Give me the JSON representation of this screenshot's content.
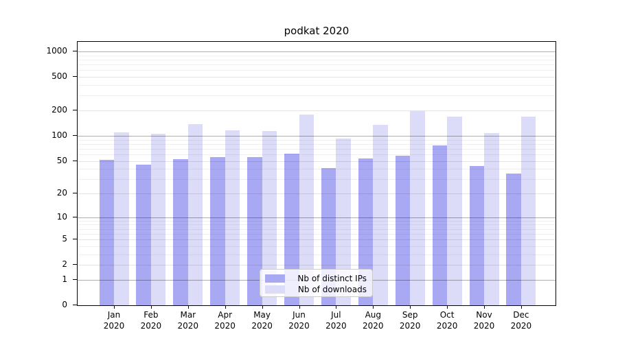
{
  "chart_data": {
    "type": "bar",
    "title": "podkat 2020",
    "categories": [
      "Jan 2020",
      "Feb 2020",
      "Mar 2020",
      "Apr 2020",
      "May 2020",
      "Jun 2020",
      "Jul 2020",
      "Aug 2020",
      "Sep 2020",
      "Oct 2020",
      "Nov 2020",
      "Dec 2020"
    ],
    "series": [
      {
        "name": "Nb of distinct IPs",
        "color": "#a9a9f3",
        "values": [
          51,
          45,
          52,
          55,
          55,
          61,
          41,
          53,
          58,
          76,
          43,
          35
        ]
      },
      {
        "name": "Nb of downloads",
        "color": "#dcdcf8",
        "values": [
          110,
          105,
          137,
          116,
          115,
          180,
          92,
          135,
          195,
          168,
          108,
          170
        ]
      }
    ],
    "y_axis": {
      "scale": "log1p",
      "ticks": [
        0,
        1,
        2,
        5,
        10,
        20,
        50,
        100,
        200,
        500,
        1000
      ],
      "major_gridlines": [
        1,
        10,
        100,
        1000
      ],
      "minor_gridlines": [
        3,
        4,
        6,
        7,
        8,
        9,
        30,
        40,
        60,
        70,
        80,
        90,
        300,
        400,
        600,
        700,
        800,
        900
      ],
      "range": [
        0,
        1300
      ]
    },
    "grid": true,
    "legend_position": "lower-center"
  }
}
